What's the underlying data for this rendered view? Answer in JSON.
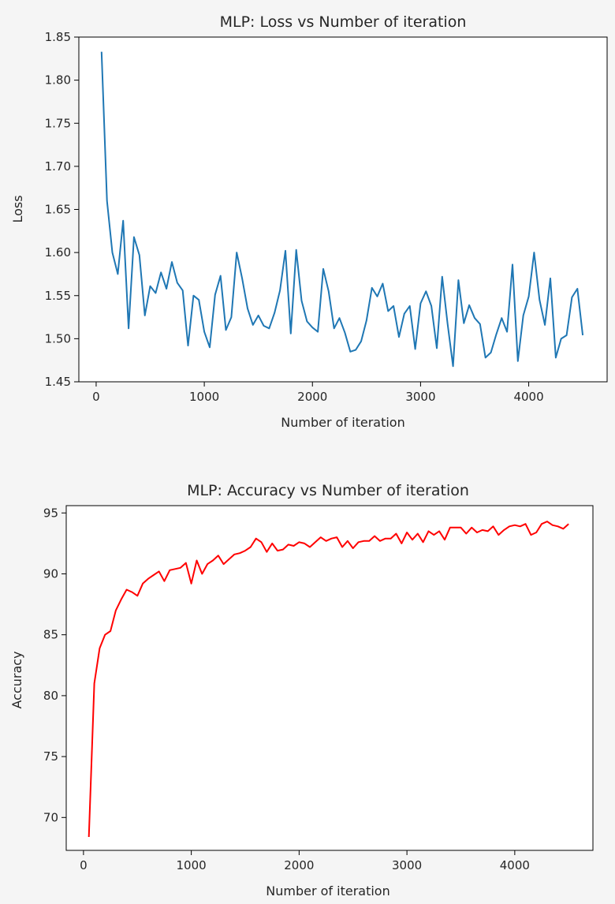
{
  "chart_data": [
    {
      "type": "line",
      "title": "MLP: Loss vs Number of iteration",
      "xlabel": "Number of iteration",
      "ylabel": "Loss",
      "xlim": [
        -160,
        4725
      ],
      "ylim": [
        1.45,
        1.85
      ],
      "xticks": [
        0,
        1000,
        2000,
        3000,
        4000
      ],
      "yticks": [
        1.45,
        1.5,
        1.55,
        1.6,
        1.65,
        1.7,
        1.75,
        1.8,
        1.85
      ],
      "ytick_decimals": 2,
      "grid": false,
      "color": "#1f77b4",
      "series": [
        {
          "x": [
            50,
            100,
            150,
            200,
            250,
            300,
            350,
            400,
            450,
            500,
            550,
            600,
            650,
            700,
            750,
            800,
            850,
            900,
            950,
            1000,
            1050,
            1100,
            1150,
            1200,
            1250,
            1300,
            1350,
            1400,
            1450,
            1500,
            1550,
            1600,
            1650,
            1700,
            1750,
            1800,
            1850,
            1900,
            1950,
            2000,
            2050,
            2100,
            2150,
            2200,
            2250,
            2300,
            2350,
            2400,
            2450,
            2500,
            2550,
            2600,
            2650,
            2700,
            2750,
            2800,
            2850,
            2900,
            2950,
            3000,
            3050,
            3100,
            3150,
            3200,
            3250,
            3300,
            3350,
            3400,
            3450,
            3500,
            3550,
            3600,
            3650,
            3700,
            3750,
            3800,
            3850,
            3900,
            3950,
            4000,
            4050,
            4100,
            4150,
            4200,
            4250,
            4300,
            4350,
            4400,
            4450,
            4500
          ],
          "values": [
            1.833,
            1.66,
            1.6,
            1.575,
            1.637,
            1.512,
            1.618,
            1.597,
            1.527,
            1.561,
            1.553,
            1.577,
            1.558,
            1.589,
            1.565,
            1.556,
            1.492,
            1.55,
            1.545,
            1.508,
            1.49,
            1.551,
            1.573,
            1.51,
            1.525,
            1.6,
            1.57,
            1.535,
            1.516,
            1.527,
            1.515,
            1.512,
            1.53,
            1.556,
            1.602,
            1.506,
            1.603,
            1.544,
            1.52,
            1.513,
            1.508,
            1.581,
            1.555,
            1.512,
            1.524,
            1.507,
            1.485,
            1.487,
            1.497,
            1.521,
            1.559,
            1.549,
            1.564,
            1.532,
            1.538,
            1.502,
            1.529,
            1.538,
            1.488,
            1.541,
            1.555,
            1.538,
            1.489,
            1.572,
            1.517,
            1.468,
            1.568,
            1.518,
            1.539,
            1.524,
            1.517,
            1.478,
            1.484,
            1.505,
            1.524,
            1.508,
            1.586,
            1.474,
            1.527,
            1.549,
            1.6,
            1.545,
            1.516,
            1.57,
            1.478,
            1.5,
            1.504,
            1.548,
            1.558,
            1.504
          ]
        }
      ]
    },
    {
      "type": "line",
      "title": "MLP: Accuracy vs Number of iteration",
      "xlabel": "Number of iteration",
      "ylabel": "Accuracy",
      "xlim": [
        -160,
        4725
      ],
      "ylim": [
        67.3,
        95.6
      ],
      "xticks": [
        0,
        1000,
        2000,
        3000,
        4000
      ],
      "yticks": [
        70,
        75,
        80,
        85,
        90,
        95
      ],
      "ytick_decimals": 0,
      "grid": false,
      "color": "#ff0000",
      "series": [
        {
          "x": [
            50,
            100,
            150,
            200,
            250,
            300,
            350,
            400,
            450,
            500,
            550,
            600,
            650,
            700,
            750,
            800,
            850,
            900,
            950,
            1000,
            1050,
            1100,
            1150,
            1200,
            1250,
            1300,
            1350,
            1400,
            1450,
            1500,
            1550,
            1600,
            1650,
            1700,
            1750,
            1800,
            1850,
            1900,
            1950,
            2000,
            2050,
            2100,
            2150,
            2200,
            2250,
            2300,
            2350,
            2400,
            2450,
            2500,
            2550,
            2600,
            2650,
            2700,
            2750,
            2800,
            2850,
            2900,
            2950,
            3000,
            3050,
            3100,
            3150,
            3200,
            3250,
            3300,
            3350,
            3400,
            3450,
            3500,
            3550,
            3600,
            3650,
            3700,
            3750,
            3800,
            3850,
            3900,
            3950,
            4000,
            4050,
            4100,
            4150,
            4200,
            4250,
            4300,
            4350,
            4400,
            4450,
            4500
          ],
          "values": [
            68.4,
            81.0,
            83.9,
            85.0,
            85.3,
            87.0,
            87.9,
            88.7,
            88.5,
            88.2,
            89.2,
            89.6,
            89.9,
            90.2,
            89.4,
            90.3,
            90.4,
            90.5,
            90.9,
            89.2,
            91.1,
            90.0,
            90.8,
            91.1,
            91.5,
            90.8,
            91.2,
            91.6,
            91.7,
            91.9,
            92.2,
            92.9,
            92.6,
            91.8,
            92.5,
            91.9,
            92.0,
            92.4,
            92.3,
            92.6,
            92.5,
            92.2,
            92.6,
            93.0,
            92.7,
            92.9,
            93.0,
            92.2,
            92.7,
            92.1,
            92.6,
            92.7,
            92.7,
            93.1,
            92.7,
            92.9,
            92.9,
            93.3,
            92.5,
            93.4,
            92.8,
            93.3,
            92.6,
            93.5,
            93.2,
            93.5,
            92.8,
            93.8,
            93.8,
            93.8,
            93.3,
            93.8,
            93.4,
            93.6,
            93.5,
            93.9,
            93.2,
            93.6,
            93.9,
            94.0,
            93.9,
            94.1,
            93.2,
            93.4,
            94.1,
            94.3,
            94.0,
            93.9,
            93.7,
            94.1
          ]
        }
      ]
    }
  ]
}
